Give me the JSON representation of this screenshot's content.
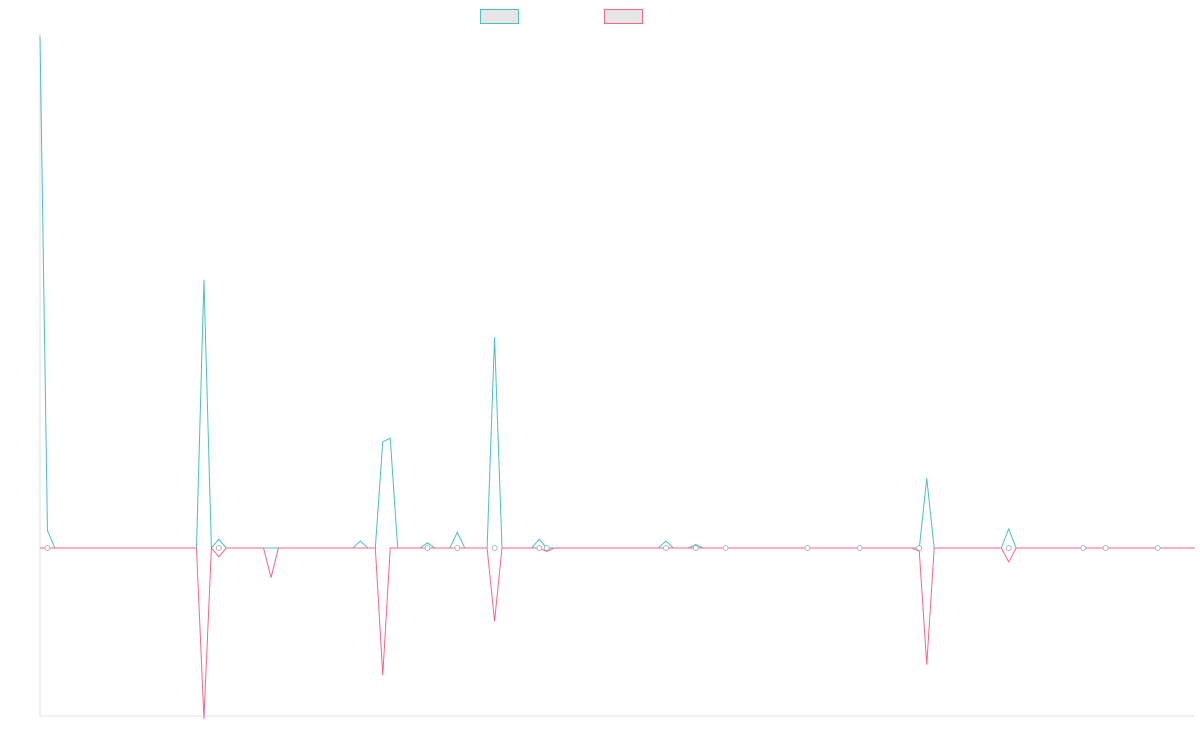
{
  "chart_data": {
    "type": "line",
    "title": "",
    "xlabel": "",
    "ylabel": "",
    "x_count": 156,
    "ylim": [
      -1,
      2.9
    ],
    "grid": false,
    "legend_position": "top-center",
    "series": [
      {
        "color": "#4bc0c0",
        "points": [
          [
            0,
            2.94
          ],
          [
            1,
            0.1
          ],
          [
            22,
            1.54
          ],
          [
            24,
            0.05
          ],
          [
            43,
            0.04
          ],
          [
            46,
            0.61
          ],
          [
            47,
            0.63
          ],
          [
            52,
            0.03
          ],
          [
            56,
            0.09
          ],
          [
            61,
            1.21
          ],
          [
            67,
            0.05
          ],
          [
            84,
            0.04
          ],
          [
            88,
            0.02
          ],
          [
            119,
            0.4
          ],
          [
            130,
            0.11
          ]
        ]
      },
      {
        "color": "#ff6384",
        "points": [
          [
            22,
            -0.98
          ],
          [
            24,
            -0.05
          ],
          [
            31,
            -0.17
          ],
          [
            46,
            -0.73
          ],
          [
            61,
            -0.42
          ],
          [
            68,
            -0.02
          ],
          [
            119,
            -0.67
          ],
          [
            130,
            -0.08
          ],
          [
            118,
            -0.02
          ]
        ]
      }
    ],
    "markers": [
      1,
      24,
      52,
      56,
      61,
      67,
      68,
      84,
      88,
      92,
      103,
      110,
      118,
      130,
      140,
      143,
      150
    ]
  },
  "legend": {
    "items": [
      {
        "label": "",
        "color": "#4bc0c0"
      },
      {
        "label": "",
        "color": "#ff6384"
      }
    ]
  }
}
